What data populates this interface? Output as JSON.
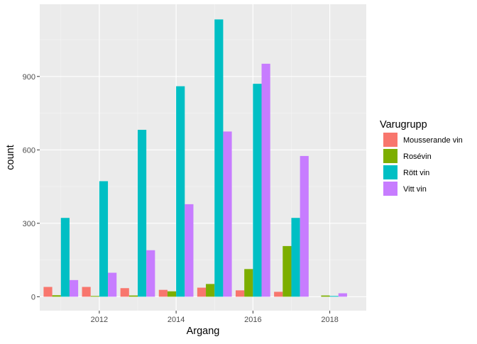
{
  "chart_data": {
    "type": "bar",
    "xlabel": "Argang",
    "ylabel": "count",
    "x_ticks": [
      2012,
      2014,
      2016,
      2018
    ],
    "y_ticks": [
      0,
      300,
      600,
      900
    ],
    "xlim": [
      2010.45,
      2018.95
    ],
    "ylim": [
      -57,
      1195
    ],
    "grid": true,
    "legend": {
      "title": "Varugrupp",
      "position": "right"
    },
    "categories": [
      2011,
      2012,
      2013,
      2014,
      2015,
      2016,
      2017,
      2018
    ],
    "series": [
      {
        "name": "Mousserande vin",
        "color": "#F8766D",
        "values": [
          40,
          40,
          35,
          28,
          37,
          26,
          20,
          0
        ]
      },
      {
        "name": "Rosévin",
        "color": "#7CAE00",
        "values": [
          6,
          3,
          5,
          22,
          52,
          113,
          207,
          5
        ]
      },
      {
        "name": "Rött vin",
        "color": "#00BFC4",
        "values": [
          322,
          472,
          682,
          860,
          1133,
          870,
          322,
          3
        ]
      },
      {
        "name": "Vitt vin",
        "color": "#C77CFF",
        "values": [
          68,
          98,
          190,
          378,
          675,
          952,
          575,
          14
        ]
      }
    ]
  }
}
